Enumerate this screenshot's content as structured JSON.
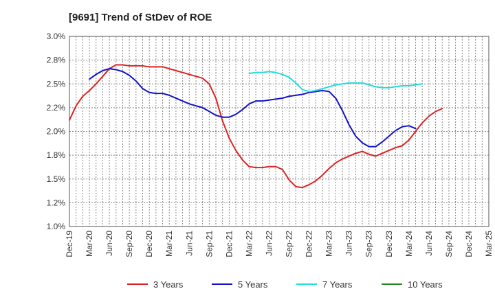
{
  "chart_data": {
    "type": "line",
    "title": "[9691]  Trend of StDev of ROE",
    "xlabel": "",
    "ylabel": "",
    "ylim": [
      1.0,
      3.0
    ],
    "y_ticks": [
      "1.0%",
      "1.2%",
      "1.5%",
      "1.8%",
      "2.0%",
      "2.2%",
      "2.5%",
      "2.8%",
      "3.0%"
    ],
    "y_tick_values": [
      1.0,
      1.25,
      1.5,
      1.75,
      2.0,
      2.25,
      2.5,
      2.75,
      3.0
    ],
    "x_ticks": [
      "Dec-19",
      "Mar-20",
      "Jun-20",
      "Sep-20",
      "Dec-20",
      "Mar-21",
      "Jun-21",
      "Sep-21",
      "Dec-21",
      "Mar-22",
      "Jun-22",
      "Sep-22",
      "Dec-22",
      "Mar-23",
      "Jun-23",
      "Sep-23",
      "Dec-23",
      "Mar-24",
      "Jun-24",
      "Sep-24",
      "Dec-24",
      "Mar-25"
    ],
    "x_range": [
      "Dec-19",
      "Mar-25"
    ],
    "grid": true,
    "legend_position": "bottom",
    "series": [
      {
        "name": "3 Years",
        "color": "#dd2222",
        "start": "Dec-19",
        "values": [
          2.12,
          2.27,
          2.37,
          2.43,
          2.5,
          2.58,
          2.66,
          2.7,
          2.7,
          2.69,
          2.69,
          2.69,
          2.68,
          2.68,
          2.68,
          2.66,
          2.64,
          2.62,
          2.6,
          2.58,
          2.56,
          2.5,
          2.35,
          2.11,
          1.93,
          1.8,
          1.7,
          1.63,
          1.62,
          1.62,
          1.63,
          1.63,
          1.6,
          1.49,
          1.42,
          1.41,
          1.44,
          1.48,
          1.54,
          1.61,
          1.67,
          1.71,
          1.74,
          1.77,
          1.79,
          1.76,
          1.74,
          1.77,
          1.8,
          1.83,
          1.85,
          1.91,
          2.0,
          2.09,
          2.16,
          2.21,
          2.24
        ]
      },
      {
        "name": "5 Years",
        "color": "#1111cc",
        "start": "Mar-20",
        "values": [
          2.55,
          2.6,
          2.64,
          2.66,
          2.65,
          2.63,
          2.59,
          2.53,
          2.45,
          2.41,
          2.4,
          2.4,
          2.38,
          2.35,
          2.32,
          2.29,
          2.27,
          2.25,
          2.21,
          2.17,
          2.15,
          2.15,
          2.18,
          2.23,
          2.29,
          2.32,
          2.32,
          2.33,
          2.34,
          2.35,
          2.37,
          2.38,
          2.39,
          2.41,
          2.42,
          2.43,
          2.42,
          2.35,
          2.22,
          2.07,
          1.95,
          1.88,
          1.84,
          1.84,
          1.89,
          1.95,
          2.01,
          2.05,
          2.06,
          2.03
        ]
      },
      {
        "name": "7 Years",
        "color": "#22dddd",
        "start": "Mar-22",
        "values": [
          2.61,
          2.62,
          2.62,
          2.63,
          2.62,
          2.6,
          2.57,
          2.51,
          2.44,
          2.42,
          2.43,
          2.45,
          2.47,
          2.49,
          2.5,
          2.51,
          2.51,
          2.51,
          2.49,
          2.47,
          2.46,
          2.46,
          2.47,
          2.48,
          2.48,
          2.49,
          2.5
        ]
      },
      {
        "name": "10 Years",
        "color": "#228822",
        "start": "Dec-24",
        "values": []
      }
    ]
  }
}
